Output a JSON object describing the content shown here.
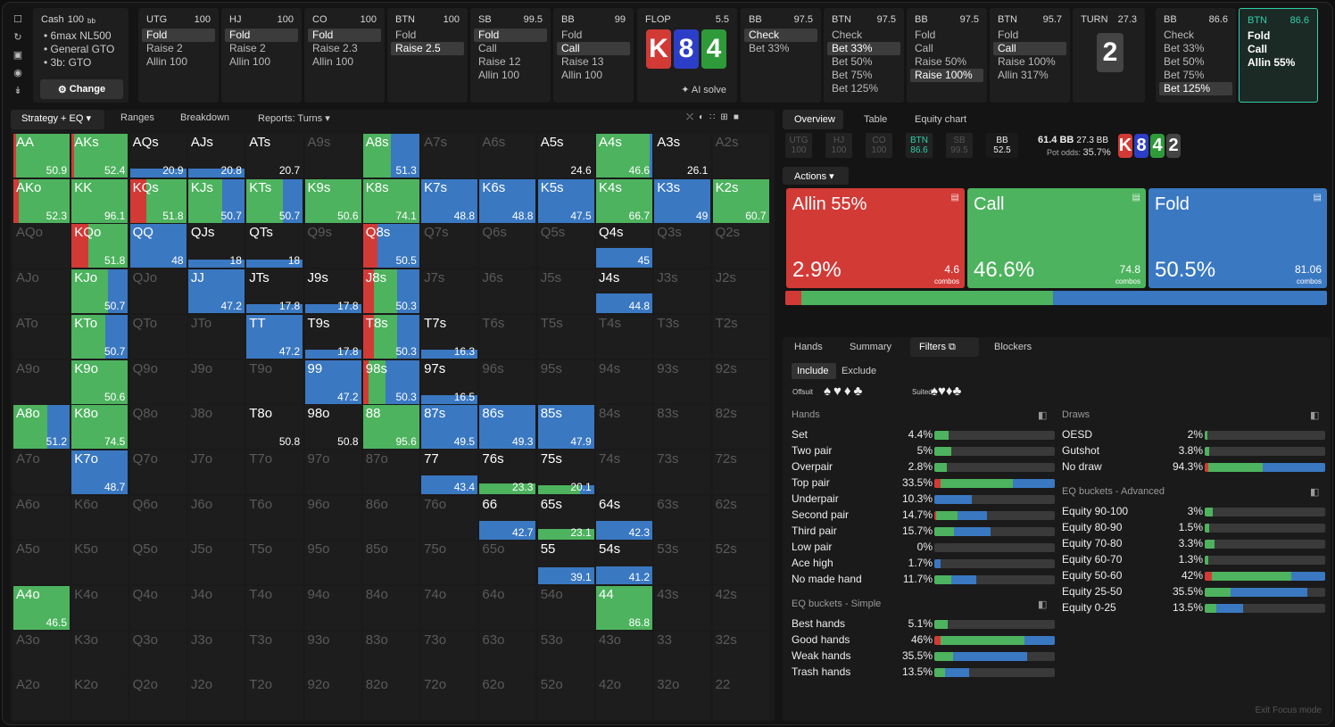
{
  "sidebar_icons": [
    "bookmark-icon",
    "history-icon",
    "save-icon",
    "gamepad-icon",
    "text-cursor-icon"
  ],
  "cash": {
    "title": "Cash",
    "stack": "100",
    "stack_unit": "bb",
    "lines": [
      "6max NL500",
      "General GTO",
      "3b: GTO"
    ],
    "change_label": "Change"
  },
  "nodes": [
    {
      "pos": "UTG",
      "stack": "100",
      "actions": [
        "Fold",
        "Raise 2",
        "Allin 100"
      ],
      "selected": 0
    },
    {
      "pos": "HJ",
      "stack": "100",
      "actions": [
        "Fold",
        "Raise 2",
        "Allin 100"
      ],
      "selected": 0
    },
    {
      "pos": "CO",
      "stack": "100",
      "actions": [
        "Fold",
        "Raise 2.3",
        "Allin 100"
      ],
      "selected": 0
    },
    {
      "pos": "BTN",
      "stack": "100",
      "actions": [
        "Fold",
        "Raise 2.5"
      ],
      "selected": 1
    },
    {
      "pos": "SB",
      "stack": "99.5",
      "actions": [
        "Fold",
        "Call",
        "Raise 12",
        "Allin 100"
      ],
      "selected": 0
    },
    {
      "pos": "BB",
      "stack": "99",
      "actions": [
        "Fold",
        "Call",
        "Raise 13",
        "Allin 100"
      ],
      "selected": 1
    }
  ],
  "flop": {
    "label": "FLOP",
    "pot": "5.5",
    "cards": [
      "K",
      "8",
      "4"
    ],
    "ai_label": "AI solve"
  },
  "nodes2": [
    {
      "pos": "BB",
      "stack": "97.5",
      "actions": [
        "Check",
        "Bet 33%"
      ],
      "selected": 0
    },
    {
      "pos": "BTN",
      "stack": "97.5",
      "actions": [
        "Check",
        "Bet 33%",
        "Bet 50%",
        "Bet 75%",
        "Bet 125%"
      ],
      "selected": 1
    },
    {
      "pos": "BB",
      "stack": "97.5",
      "actions": [
        "Fold",
        "Call",
        "Raise 50%",
        "Raise 100%"
      ],
      "selected": 3
    },
    {
      "pos": "BTN",
      "stack": "95.7",
      "actions": [
        "Fold",
        "Call",
        "Raise 100%",
        "Allin 317%"
      ],
      "selected": 1
    }
  ],
  "turn": {
    "label": "TURN",
    "pot": "27.3",
    "card": "2"
  },
  "nodes3": [
    {
      "pos": "BB",
      "stack": "86.6",
      "actions": [
        "Check",
        "Bet 33%",
        "Bet 50%",
        "Bet 75%",
        "Bet 125%"
      ],
      "selected": 4
    },
    {
      "pos": "BTN",
      "stack": "86.6",
      "actions": [
        "Fold",
        "Call",
        "Allin 55%"
      ],
      "selected": -1,
      "active": true
    }
  ],
  "left_tabs": {
    "strategy": "Strategy + EQ",
    "ranges": "Ranges",
    "breakdown": "Breakdown",
    "reports": "Reports: Turns"
  },
  "view_icons": [
    "compare-icon",
    "contrast-icon",
    "grid-small-icon",
    "grid-icon",
    "square-icon"
  ],
  "colors": {
    "allin": "#d23a36",
    "call": "#4db35e",
    "fold": "#3a78c2"
  },
  "matrix": {
    "ranks": [
      "A",
      "K",
      "Q",
      "J",
      "T",
      "9",
      "8",
      "7",
      "6",
      "5",
      "4",
      "3",
      "2"
    ],
    "values": {
      "AA": "50.9",
      "AKs": "52.4",
      "AQs": "20.9",
      "AJs": "20.8",
      "ATs": "20.7",
      "A8s": "51.3",
      "A5s": "24.6",
      "A4s": "46.6",
      "A3s": "26.1",
      "AKo": "52.3",
      "KK": "96.1",
      "KQs": "51.8",
      "KJs": "50.7",
      "KTs": "50.7",
      "K9s": "50.6",
      "K8s": "74.1",
      "K7s": "48.8",
      "K6s": "48.8",
      "K5s": "47.5",
      "K4s": "66.7",
      "K3s": "49",
      "K2s": "60.7",
      "KQo": "51.8",
      "QQ": "48",
      "QJs": "18",
      "QTs": "18",
      "Q8s": "50.5",
      "Q4s": "45",
      "KJo": "50.7",
      "JJ": "47.2",
      "JTs": "17.8",
      "J9s": "17.8",
      "J8s": "50.3",
      "J4s": "44.8",
      "KTo": "50.7",
      "TT": "47.2",
      "T9s": "17.8",
      "T8s": "50.3",
      "T7s": "16.3",
      "K9o": "50.6",
      "99": "47.2",
      "98s": "50.3",
      "97s": "16.5",
      "A8o": "51.2",
      "K8o": "74.5",
      "T8o": "50.8",
      "98o": "50.8",
      "88": "95.6",
      "87s": "49.5",
      "86s": "49.3",
      "85s": "47.9",
      "K7o": "48.7",
      "77": "43.4",
      "76s": "23.3",
      "75s": "20.1",
      "66": "42.7",
      "65s": "23.1",
      "64s": "42.3",
      "55": "39.1",
      "54s": "41.2",
      "A4o": "46.5",
      "44": "86.8"
    }
  },
  "right_tabs": {
    "overview": "Overview",
    "table": "Table",
    "equity": "Equity chart"
  },
  "players_mini": [
    {
      "pos": "UTG",
      "st": "100"
    },
    {
      "pos": "HJ",
      "st": "100"
    },
    {
      "pos": "CO",
      "st": "100"
    },
    {
      "pos": "BTN",
      "st": "86.6"
    },
    {
      "pos": "SB",
      "st": "99.5"
    },
    {
      "pos": "BB",
      "st": "52.5"
    }
  ],
  "pot_info": {
    "pot": "61.4 BB",
    "stack": "27.3 BB",
    "odds_label": "Pot odds:",
    "odds": "35.7%"
  },
  "board": [
    "K",
    "8",
    "4",
    "2"
  ],
  "actions_label": "Actions",
  "big_actions": [
    {
      "name": "Allin 55%",
      "pct": "2.9%",
      "combos": "4.6",
      "combos_label": "combos",
      "color": "#d23a36",
      "freq": 2.9
    },
    {
      "name": "Call",
      "pct": "46.6%",
      "combos": "74.8",
      "combos_label": "combos",
      "color": "#4db35e",
      "freq": 46.6
    },
    {
      "name": "Fold",
      "pct": "50.5%",
      "combos": "81.06",
      "combos_label": "combos",
      "color": "#3a78c2",
      "freq": 50.5
    }
  ],
  "sub_tabs": {
    "hands": "Hands",
    "summary": "Summary",
    "filters": "Filters",
    "blockers": "Blockers"
  },
  "include_label": "Include",
  "exclude_label": "Exclude",
  "offsuit_label": "Offsuit",
  "suited_label": "Suited",
  "hands_title": "Hands",
  "hands": [
    {
      "label": "Set",
      "pct": "4.4%",
      "segs": [
        0,
        100,
        0
      ],
      "w": 12
    },
    {
      "label": "Two pair",
      "pct": "5%",
      "segs": [
        0,
        100,
        0
      ],
      "w": 14
    },
    {
      "label": "Overpair",
      "pct": "2.8%",
      "segs": [
        0,
        100,
        0
      ],
      "w": 10
    },
    {
      "label": "Top pair",
      "pct": "33.5%",
      "segs": [
        5,
        60,
        35
      ],
      "w": 100
    },
    {
      "label": "Underpair",
      "pct": "10.3%",
      "segs": [
        0,
        0,
        100
      ],
      "w": 31
    },
    {
      "label": "Second pair",
      "pct": "14.7%",
      "segs": [
        4,
        40,
        56
      ],
      "w": 44
    },
    {
      "label": "Third pair",
      "pct": "15.7%",
      "segs": [
        0,
        35,
        65
      ],
      "w": 47
    },
    {
      "label": "Low pair",
      "pct": "0%",
      "segs": [
        0,
        0,
        0
      ],
      "w": 0
    },
    {
      "label": "Ace high",
      "pct": "1.7%",
      "segs": [
        0,
        0,
        100
      ],
      "w": 5
    },
    {
      "label": "No made hand",
      "pct": "11.7%",
      "segs": [
        0,
        40,
        60
      ],
      "w": 35
    }
  ],
  "eq_simple_title": "EQ buckets - Simple",
  "eq_simple": [
    {
      "label": "Best hands",
      "pct": "5.1%",
      "segs": [
        0,
        100,
        0
      ],
      "w": 11
    },
    {
      "label": "Good hands",
      "pct": "46%",
      "segs": [
        5,
        70,
        25
      ],
      "w": 100
    },
    {
      "label": "Weak hands",
      "pct": "35.5%",
      "segs": [
        0,
        20,
        80
      ],
      "w": 77
    },
    {
      "label": "Trash hands",
      "pct": "13.5%",
      "segs": [
        0,
        30,
        70
      ],
      "w": 29
    }
  ],
  "draws_title": "Draws",
  "draws": [
    {
      "label": "OESD",
      "pct": "2%",
      "segs": [
        0,
        100,
        0
      ],
      "w": 2
    },
    {
      "label": "Gutshot",
      "pct": "3.8%",
      "segs": [
        0,
        100,
        0
      ],
      "w": 4
    },
    {
      "label": "No draw",
      "pct": "94.3%",
      "segs": [
        3,
        45,
        52
      ],
      "w": 100
    }
  ],
  "eq_adv_title": "EQ buckets - Advanced",
  "eq_adv": [
    {
      "label": "Equity 90-100",
      "pct": "3%",
      "segs": [
        0,
        100,
        0
      ],
      "w": 7
    },
    {
      "label": "Equity 80-90",
      "pct": "1.5%",
      "segs": [
        0,
        100,
        0
      ],
      "w": 4
    },
    {
      "label": "Equity 70-80",
      "pct": "3.3%",
      "segs": [
        0,
        100,
        0
      ],
      "w": 8
    },
    {
      "label": "Equity 60-70",
      "pct": "1.3%",
      "segs": [
        0,
        100,
        0
      ],
      "w": 3
    },
    {
      "label": "Equity 50-60",
      "pct": "42%",
      "segs": [
        6,
        66,
        28
      ],
      "w": 100
    },
    {
      "label": "Equity 25-50",
      "pct": "35.5%",
      "segs": [
        0,
        25,
        75
      ],
      "w": 85
    },
    {
      "label": "Equity 0-25",
      "pct": "13.5%",
      "segs": [
        0,
        30,
        70
      ],
      "w": 32
    }
  ],
  "exit_label": "Exit Focus mode"
}
